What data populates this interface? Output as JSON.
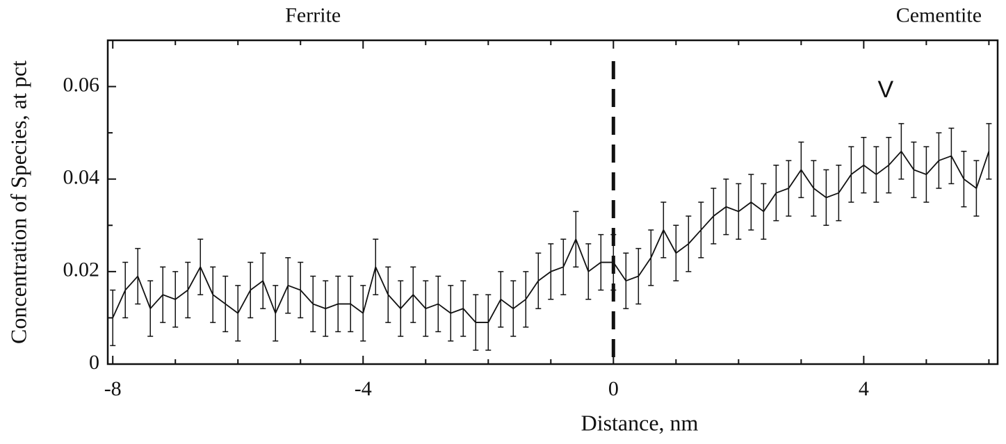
{
  "chart_data": {
    "type": "line",
    "xlabel": "Distance, nm",
    "ylabel": "Concentration of Species, at pct",
    "annotations": [
      {
        "text": "Ferrite",
        "x": -4.8,
        "y": 0.075
      },
      {
        "text": "Cementite",
        "x": 5.2,
        "y": 0.075
      },
      {
        "text": "V",
        "x": 4.35,
        "y": 0.059
      }
    ],
    "vlines": [
      0
    ],
    "xlim": [
      -8.08,
      6.14
    ],
    "ylim": [
      0,
      0.07
    ],
    "xticks": [
      -8,
      -4,
      0,
      4
    ],
    "xticks_minor": [
      -7,
      -6,
      -5,
      -3,
      -2,
      -1,
      1,
      2,
      3,
      5,
      6
    ],
    "yticks": [
      0,
      0.02,
      0.04,
      0.06
    ],
    "yticks_minor": [
      0.01,
      0.03,
      0.05,
      0.07
    ],
    "x": [
      -8.0,
      -7.8,
      -7.6,
      -7.4,
      -7.2,
      -7.0,
      -6.8,
      -6.6,
      -6.4,
      -6.2,
      -6.0,
      -5.8,
      -5.6,
      -5.4,
      -5.2,
      -5.0,
      -4.8,
      -4.6,
      -4.4,
      -4.2,
      -4.0,
      -3.8,
      -3.6,
      -3.4,
      -3.2,
      -3.0,
      -2.8,
      -2.6,
      -2.4,
      -2.2,
      -2.0,
      -1.8,
      -1.6,
      -1.4,
      -1.2,
      -1.0,
      -0.8,
      -0.6,
      -0.4,
      -0.2,
      0.0,
      0.2,
      0.4,
      0.6,
      0.8,
      1.0,
      1.2,
      1.4,
      1.6,
      1.8,
      2.0,
      2.2,
      2.4,
      2.6,
      2.8,
      3.0,
      3.2,
      3.4,
      3.6,
      3.8,
      4.0,
      4.2,
      4.4,
      4.6,
      4.8,
      5.0,
      5.2,
      5.4,
      5.6,
      5.8,
      6.0
    ],
    "series": [
      {
        "color": "#111111",
        "values": [
          0.01,
          0.016,
          0.019,
          0.012,
          0.015,
          0.014,
          0.016,
          0.021,
          0.015,
          0.013,
          0.011,
          0.016,
          0.018,
          0.011,
          0.017,
          0.016,
          0.013,
          0.012,
          0.013,
          0.013,
          0.011,
          0.021,
          0.015,
          0.012,
          0.015,
          0.012,
          0.013,
          0.011,
          0.012,
          0.009,
          0.009,
          0.014,
          0.012,
          0.014,
          0.018,
          0.02,
          0.021,
          0.027,
          0.02,
          0.022,
          0.022,
          0.018,
          0.019,
          0.023,
          0.029,
          0.024,
          0.026,
          0.029,
          0.032,
          0.034,
          0.033,
          0.035,
          0.033,
          0.037,
          0.038,
          0.042,
          0.038,
          0.036,
          0.037,
          0.041,
          0.043,
          0.041,
          0.043,
          0.046,
          0.042,
          0.041,
          0.044,
          0.045,
          0.04,
          0.038,
          0.046
        ],
        "errors": [
          0.006,
          0.006,
          0.006,
          0.006,
          0.006,
          0.006,
          0.006,
          0.006,
          0.006,
          0.006,
          0.006,
          0.006,
          0.006,
          0.006,
          0.006,
          0.006,
          0.006,
          0.006,
          0.006,
          0.006,
          0.006,
          0.006,
          0.006,
          0.006,
          0.006,
          0.006,
          0.006,
          0.006,
          0.006,
          0.006,
          0.006,
          0.006,
          0.006,
          0.006,
          0.006,
          0.006,
          0.006,
          0.006,
          0.006,
          0.006,
          0.006,
          0.006,
          0.006,
          0.006,
          0.006,
          0.006,
          0.006,
          0.006,
          0.006,
          0.006,
          0.006,
          0.006,
          0.006,
          0.006,
          0.006,
          0.006,
          0.006,
          0.006,
          0.006,
          0.006,
          0.006,
          0.006,
          0.006,
          0.006,
          0.006,
          0.006,
          0.006,
          0.006,
          0.006,
          0.006,
          0.006
        ]
      }
    ]
  }
}
